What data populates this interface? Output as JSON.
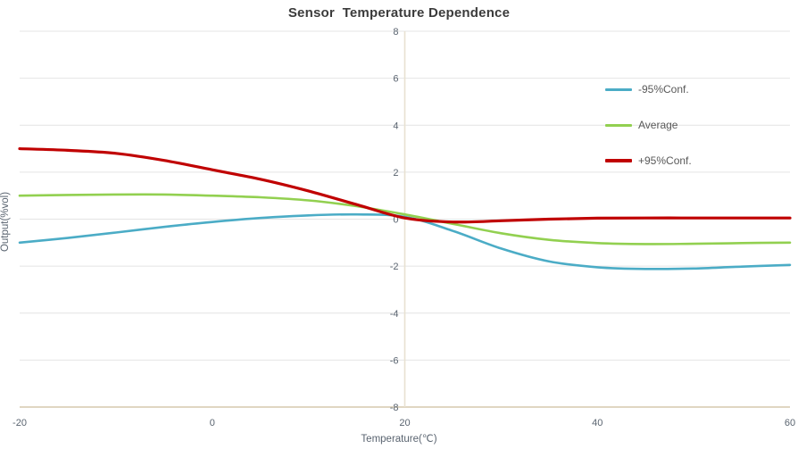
{
  "chart_data": {
    "type": "line",
    "title": "Sensor  Temperature Dependence",
    "xlabel": "Temperature(℃)",
    "ylabel": "Output(%vol)",
    "xlim": [
      -20,
      60
    ],
    "ylim": [
      -8,
      8
    ],
    "xticks": [
      -20,
      0,
      20,
      40,
      60
    ],
    "yticks": [
      8,
      6,
      4,
      2,
      0,
      -2,
      -4,
      -6,
      -8
    ],
    "grid": "horizontal-only",
    "axis_cross_x": 20,
    "legend_position": "upper-right-inside",
    "x": [
      -20,
      -15,
      -10,
      -5,
      0,
      5,
      10,
      15,
      20,
      25,
      30,
      35,
      40,
      45,
      50,
      55,
      60
    ],
    "series": [
      {
        "name": "-95%Conf.",
        "color": "#4bacc6",
        "line_width": 2.6,
        "values": [
          -1.0,
          -0.8,
          -0.57,
          -0.33,
          -0.12,
          0.05,
          0.16,
          0.2,
          0.1,
          -0.5,
          -1.25,
          -1.8,
          -2.05,
          -2.12,
          -2.1,
          -2.02,
          -1.95
        ]
      },
      {
        "name": "Average",
        "color": "#92d050",
        "line_width": 2.6,
        "values": [
          1.0,
          1.03,
          1.05,
          1.05,
          1.0,
          0.93,
          0.8,
          0.55,
          0.2,
          -0.2,
          -0.6,
          -0.88,
          -1.02,
          -1.06,
          -1.05,
          -1.02,
          -1.0
        ]
      },
      {
        "name": "+95%Conf.",
        "color": "#c00000",
        "line_width": 3.2,
        "values": [
          3.0,
          2.93,
          2.8,
          2.5,
          2.1,
          1.7,
          1.2,
          0.62,
          0.05,
          -0.12,
          -0.07,
          0.0,
          0.04,
          0.05,
          0.05,
          0.05,
          0.05
        ]
      }
    ],
    "colors": {
      "background": "#ffffff",
      "grid_line": "#e4e4e4",
      "vertical_axis_line": "#e8e1d1",
      "baseline": "#e0d6c2",
      "tick_text": "#5a6470",
      "axis_title_text": "#5a6470",
      "title_text": "#3b3b3b",
      "legend_text": "#595959"
    }
  }
}
